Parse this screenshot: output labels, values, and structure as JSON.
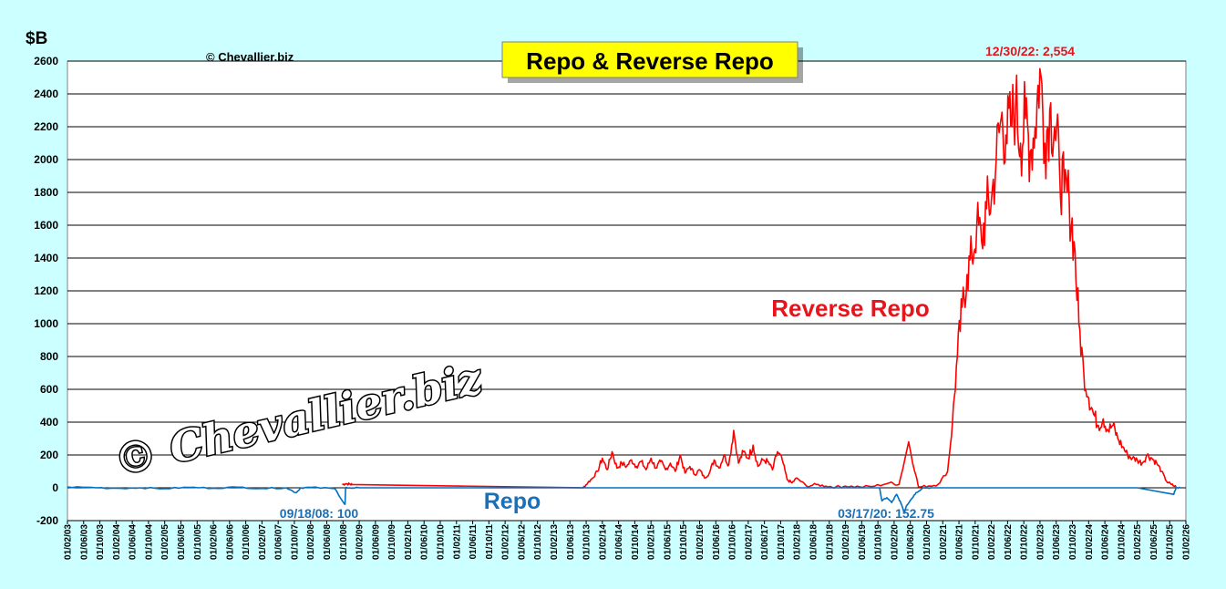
{
  "chart_data": {
    "type": "line",
    "title": "Repo & Reverse Repo",
    "ylabel": "$B",
    "ylim": [
      -200,
      2600
    ],
    "yticks": [
      -200,
      0,
      200,
      400,
      600,
      800,
      1000,
      1200,
      1400,
      1600,
      1800,
      2000,
      2200,
      2400,
      2600
    ],
    "grid": true,
    "xticks": [
      "01/02/03",
      "01/06/03",
      "01/10/03",
      "01/02/04",
      "01/06/04",
      "01/10/04",
      "01/02/05",
      "01/06/05",
      "01/10/05",
      "01/02/06",
      "01/06/06",
      "01/10/06",
      "01/02/07",
      "01/06/07",
      "01/10/07",
      "01/02/08",
      "01/06/08",
      "01/10/08",
      "01/02/09",
      "01/06/09",
      "01/10/09",
      "01/02/10",
      "01/06/10",
      "01/10/10",
      "01/02/11",
      "01/06/11",
      "01/10/11",
      "01/02/12",
      "01/06/12",
      "01/10/12",
      "01/02/13",
      "01/06/13",
      "01/10/13",
      "01/02/14",
      "01/06/14",
      "01/10/14",
      "01/02/15",
      "01/06/15",
      "01/10/15",
      "01/02/16",
      "01/06/16",
      "01/10/16",
      "01/02/17",
      "01/06/17",
      "01/10/17",
      "01/02/18",
      "01/06/18",
      "01/10/18",
      "01/02/19",
      "01/06/19",
      "01/10/19",
      "01/02/20",
      "01/06/20",
      "01/10/20",
      "01/02/21",
      "01/06/21",
      "01/10/21",
      "01/02/22",
      "01/06/22",
      "01/10/22",
      "01/02/23",
      "01/06/23",
      "01/10/23",
      "01/02/24",
      "01/06/24",
      "01/10/24",
      "01/02/25",
      "01/06/25",
      "01/10/25",
      "01/02/26"
    ],
    "series": [
      {
        "name": "Reverse Repo",
        "color": "#ff0000",
        "x": [
          2008.65,
          2008.72,
          2008.8,
          2008.85,
          2013.6,
          2013.7,
          2013.8,
          2013.9,
          2014.0,
          2014.1,
          2014.2,
          2014.3,
          2014.4,
          2014.5,
          2014.6,
          2014.7,
          2014.8,
          2014.9,
          2015.0,
          2015.1,
          2015.2,
          2015.3,
          2015.4,
          2015.5,
          2015.6,
          2015.7,
          2015.8,
          2015.9,
          2016.0,
          2016.1,
          2016.2,
          2016.3,
          2016.4,
          2016.5,
          2016.6,
          2016.7,
          2016.8,
          2016.9,
          2017.0,
          2017.1,
          2017.2,
          2017.3,
          2017.4,
          2017.5,
          2017.6,
          2017.7,
          2017.8,
          2017.9,
          2018.0,
          2018.2,
          2018.4,
          2018.6,
          2018.8,
          2019.0,
          2019.3,
          2019.6,
          2019.9,
          2020.1,
          2020.3,
          2020.5,
          2020.7,
          2020.9,
          2021.1,
          2021.2,
          2021.3,
          2021.4,
          2021.5,
          2021.6,
          2021.7,
          2021.8,
          2021.9,
          2022.0,
          2022.1,
          2022.2,
          2022.3,
          2022.4,
          2022.5,
          2022.6,
          2022.7,
          2022.8,
          2022.9,
          2022.997,
          2023.1,
          2023.2,
          2023.3,
          2023.4,
          2023.5,
          2023.6,
          2023.7,
          2023.8,
          2023.9,
          2024.0,
          2024.1,
          2024.2,
          2024.3,
          2024.4,
          2024.5,
          2024.6,
          2024.7,
          2024.8,
          2024.9,
          2025.0,
          2025.1,
          2025.2,
          2025.3,
          2025.4,
          2025.5,
          2025.6,
          2025.7,
          2025.8
        ],
        "y": [
          20,
          25,
          22,
          20,
          0,
          30,
          60,
          100,
          180,
          110,
          220,
          120,
          150,
          130,
          170,
          130,
          160,
          110,
          180,
          120,
          160,
          110,
          150,
          100,
          200,
          90,
          130,
          80,
          110,
          60,
          90,
          170,
          120,
          200,
          140,
          350,
          150,
          220,
          180,
          260,
          130,
          170,
          160,
          110,
          220,
          170,
          50,
          30,
          60,
          10,
          20,
          10,
          5,
          10,
          5,
          10,
          30,
          20,
          280,
          5,
          10,
          20,
          100,
          400,
          800,
          1100,
          1300,
          1400,
          1600,
          1500,
          1700,
          1750,
          2000,
          2250,
          2150,
          2200,
          2350,
          2100,
          2250,
          2050,
          2200,
          2554,
          2100,
          2300,
          2200,
          1950,
          1800,
          1750,
          1500,
          1000,
          700,
          550,
          450,
          380,
          420,
          350,
          380,
          300,
          250,
          200,
          180,
          170,
          150,
          200,
          180,
          150,
          100,
          40,
          20,
          5
        ]
      },
      {
        "name": "Repo",
        "color": "#0070c0",
        "x": [
          2003.0,
          2003.5,
          2004.0,
          2004.5,
          2005.0,
          2005.5,
          2006.0,
          2006.5,
          2007.0,
          2007.5,
          2007.7,
          2007.8,
          2008.0,
          2008.5,
          2008.7,
          2008.71,
          2008.72,
          2008.75,
          2009.0,
          2012.0,
          2015.0,
          2018.0,
          2019.0,
          2019.7,
          2019.75,
          2019.85,
          2019.95,
          2020.05,
          2020.1,
          2020.15,
          2020.21,
          2020.25,
          2020.35,
          2020.45,
          2020.6,
          2020.8,
          2021.5,
          2023.0,
          2025.0,
          2025.75,
          2025.8,
          2025.9
        ],
        "y": [
          5,
          2,
          -3,
          0,
          -5,
          3,
          -2,
          4,
          -4,
          0,
          -30,
          0,
          2,
          -5,
          -100,
          -100,
          0,
          0,
          0,
          0,
          0,
          0,
          0,
          0,
          -80,
          -60,
          -90,
          -40,
          -70,
          -100,
          -152.75,
          -110,
          -70,
          -30,
          0,
          0,
          0,
          0,
          0,
          -40,
          0,
          0
        ]
      }
    ],
    "annotations": [
      {
        "text": "12/30/22: 2,554",
        "color": "#ff0000"
      },
      {
        "text": "09/18/08: 100",
        "color": "#0070c0"
      },
      {
        "text": "03/17/20: 152.75",
        "color": "#0070c0"
      }
    ],
    "series_labels": {
      "reverse": "Reverse Repo",
      "repo": "Repo"
    }
  },
  "header": {
    "title": "Repo & Reverse Repo",
    "unit": "$B",
    "copyright_small": "© Chevallier.biz",
    "watermark": "© Chevallier.biz"
  },
  "colors": {
    "background": "#ccffff",
    "plot_area": "#ffffff",
    "title_box": "#ffff00",
    "reverse_repo": "#ff0000",
    "repo": "#0070c0"
  }
}
